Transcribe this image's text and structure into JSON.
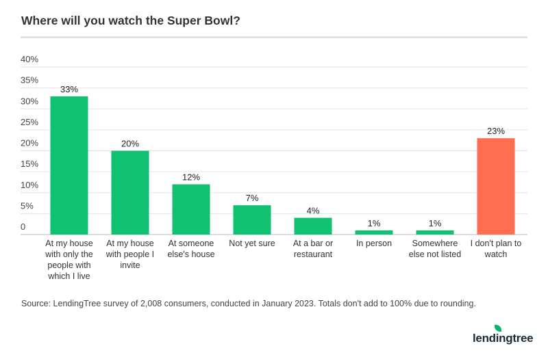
{
  "title": "Where will you watch the Super Bowl?",
  "source": "Source: LendingTree survey of 2,008 consumers, conducted in January 2023. Totals don't add to 100% due to rounding.",
  "logo": "lendingtree",
  "chart_data": {
    "type": "bar",
    "title": "Where will you watch the Super Bowl?",
    "categories": [
      [
        "At my house",
        "with only the",
        "people with",
        "which I live"
      ],
      [
        "At my house",
        "with people I",
        "invite"
      ],
      [
        "At someone",
        "else's house"
      ],
      [
        "Not yet sure"
      ],
      [
        "At a bar or",
        "restaurant"
      ],
      [
        "In person"
      ],
      [
        "Somewhere",
        "else not listed"
      ],
      [
        "I don't plan to",
        "watch"
      ]
    ],
    "values": [
      33,
      20,
      12,
      7,
      4,
      1,
      1,
      23
    ],
    "data_labels": [
      "33%",
      "20%",
      "12%",
      "7%",
      "4%",
      "1%",
      "1%",
      "23%"
    ],
    "colors": [
      "#10c172",
      "#10c172",
      "#10c172",
      "#10c172",
      "#10c172",
      "#10c172",
      "#10c172",
      "#ff6e4e"
    ],
    "ylim": [
      0,
      40
    ],
    "yticks": [
      0,
      5,
      10,
      15,
      20,
      25,
      30,
      35,
      40
    ],
    "ytick_labels": [
      "0",
      "5%",
      "10%",
      "15%",
      "20%",
      "25%",
      "30%",
      "35%",
      "40%"
    ],
    "grid": true,
    "xlabel": "",
    "ylabel": ""
  }
}
